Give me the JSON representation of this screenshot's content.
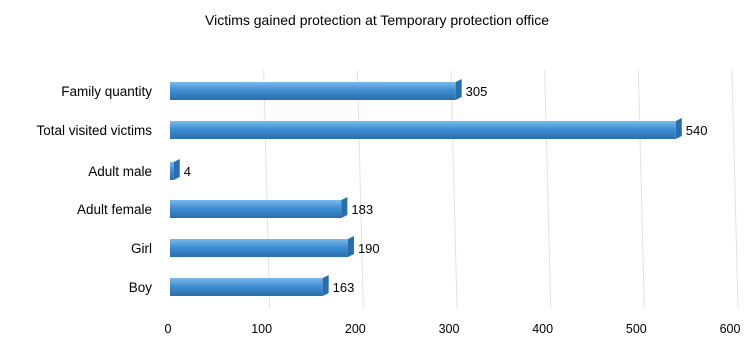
{
  "chart_data": {
    "type": "bar",
    "orientation": "horizontal",
    "title": "Victims gained protection at Temporary protection office",
    "xlabel": "",
    "ylabel": "",
    "categories": [
      "Family quantity",
      "Total visited victims",
      "Adult male",
      "Adult female",
      "Girl",
      "Boy"
    ],
    "values": [
      305,
      540,
      4,
      183,
      190,
      163
    ],
    "xlim": [
      0,
      600
    ],
    "ticks": [
      "0",
      "100",
      "200",
      "300",
      "400",
      "500",
      "600"
    ],
    "data_labels": [
      "305",
      "540",
      "4",
      "183",
      "190",
      "163"
    ],
    "grid": true,
    "legend": "none",
    "colors": {
      "bar": "#3f8fd6",
      "bar_dark": "#2a6ea9",
      "grid": "#e2e2e2"
    }
  }
}
